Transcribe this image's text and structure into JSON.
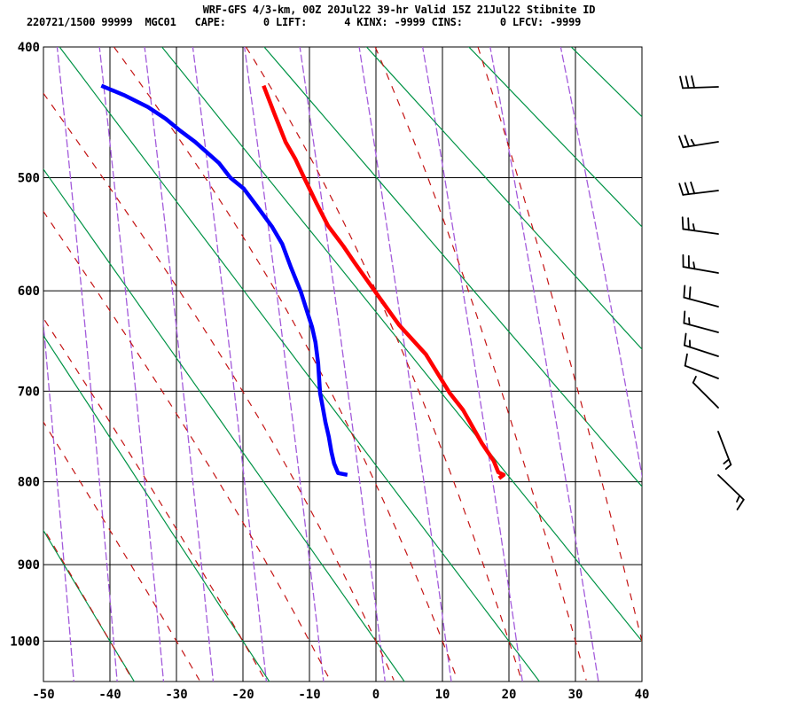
{
  "header": {
    "title_line1": "WRF-GFS 4/3-km, 00Z 20Jul22 39-hr Valid 15Z 21Jul22 Stibnite ID",
    "title_line2": "220721/1500 99999  MGC01   CAPE:      0 LIFT:      4 KINX: -9999 CINS:      0 LFCV: -9999"
  },
  "chart_data": {
    "type": "line",
    "diagram": "stuve-sounding",
    "title": "WRF-GFS 4/3-km, 00Z 20Jul22 39-hr Valid 15Z 21Jul22 Stibnite ID",
    "x_axis": {
      "name": "temperature-degC",
      "ticks": [
        -50,
        -40,
        -30,
        -20,
        -10,
        0,
        10,
        20,
        30,
        40
      ],
      "range": [
        -50,
        40
      ]
    },
    "y_axis": {
      "name": "pressure-hPa",
      "ticks": [
        400,
        500,
        600,
        700,
        800,
        900,
        1000
      ],
      "top": 400,
      "bottom": 1054,
      "scale": "p^0.286"
    },
    "grid": true,
    "series": [
      {
        "name": "temperature",
        "color": "#ff0000",
        "points": [
          [
            -16.9,
            428
          ],
          [
            -15.2,
            450
          ],
          [
            -13.6,
            471
          ],
          [
            -12.1,
            485
          ],
          [
            -10.8,
            500
          ],
          [
            -8.9,
            522
          ],
          [
            -7.2,
            541
          ],
          [
            -4.9,
            559
          ],
          [
            -3.2,
            574
          ],
          [
            -0.1,
            601
          ],
          [
            3.5,
            633
          ],
          [
            7.5,
            662
          ],
          [
            11.1,
            702
          ],
          [
            13.1,
            720
          ],
          [
            15.9,
            756
          ],
          [
            17.7,
            776
          ],
          [
            18.4,
            789
          ],
          [
            19.2,
            792
          ],
          [
            18.5,
            796
          ]
        ]
      },
      {
        "name": "dewpoint",
        "color": "#0000ff",
        "points": [
          [
            -41.3,
            428
          ],
          [
            -37.9,
            435
          ],
          [
            -34.3,
            444
          ],
          [
            -31.6,
            453
          ],
          [
            -29.5,
            462
          ],
          [
            -27.2,
            471
          ],
          [
            -25.5,
            479
          ],
          [
            -23.6,
            488
          ],
          [
            -21.9,
            500
          ],
          [
            -19.9,
            509
          ],
          [
            -17.9,
            524
          ],
          [
            -15.6,
            542
          ],
          [
            -14.1,
            557
          ],
          [
            -12.8,
            578
          ],
          [
            -11.3,
            601
          ],
          [
            -10.3,
            621
          ],
          [
            -9.6,
            635
          ],
          [
            -9.1,
            650
          ],
          [
            -8.7,
            671
          ],
          [
            -8.4,
            702
          ],
          [
            -8.0,
            717
          ],
          [
            -7.6,
            733
          ],
          [
            -7.1,
            749
          ],
          [
            -6.7,
            766
          ],
          [
            -6.3,
            779
          ],
          [
            -5.7,
            790
          ],
          [
            -4.3,
            792
          ]
        ]
      }
    ],
    "background": {
      "dry_adiabats_theta_c": [
        -40,
        -20,
        0,
        20,
        40,
        60,
        80,
        100,
        120
      ],
      "dry_adiabat_color": "#009346",
      "mixing_ratio_gkg": [
        0.0625,
        0.125,
        0.25,
        0.5,
        1,
        2,
        4,
        8,
        16,
        32,
        64
      ],
      "mixing_ratio_color": "#a35bdb",
      "moist_adiabats_thetaw_c": [
        -40,
        -30,
        -20,
        -10,
        0,
        10,
        20,
        30,
        40
      ],
      "moist_adiabat_color": "#c41414",
      "grid_color": "#000000"
    },
    "wind_barbs": {
      "x": 810,
      "staff_length": 40,
      "color": "#000000",
      "levels": [
        {
          "y": 98,
          "rot": -2,
          "feathers": [
            "full",
            "full",
            "full"
          ]
        },
        {
          "y": 160,
          "rot": -9,
          "feathers": [
            "full",
            "full",
            "half"
          ]
        },
        {
          "y": 215,
          "rot": -7,
          "feathers": [
            "full",
            "full",
            "full"
          ]
        },
        {
          "y": 264,
          "rot": 8,
          "feathers": [
            "full",
            "full",
            "half"
          ]
        },
        {
          "y": 308,
          "rot": 10,
          "feathers": [
            "full",
            "full",
            "half"
          ]
        },
        {
          "y": 346,
          "rot": 15,
          "feathers": [
            "full",
            "full"
          ]
        },
        {
          "y": 375,
          "rot": 15,
          "feathers": [
            "full",
            "half"
          ]
        },
        {
          "y": 402,
          "rot": 18,
          "feathers": [
            "full",
            "half"
          ]
        },
        {
          "y": 427,
          "rot": 21,
          "feathers": [
            "full"
          ]
        },
        {
          "y": 460,
          "rot": 45,
          "feathers": [
            "half"
          ]
        },
        {
          "y": 487,
          "rot": 249,
          "feathers": [
            "half",
            "half"
          ]
        },
        {
          "y": 536,
          "rot": 224,
          "feathers": [
            "full",
            "half"
          ]
        }
      ]
    }
  }
}
